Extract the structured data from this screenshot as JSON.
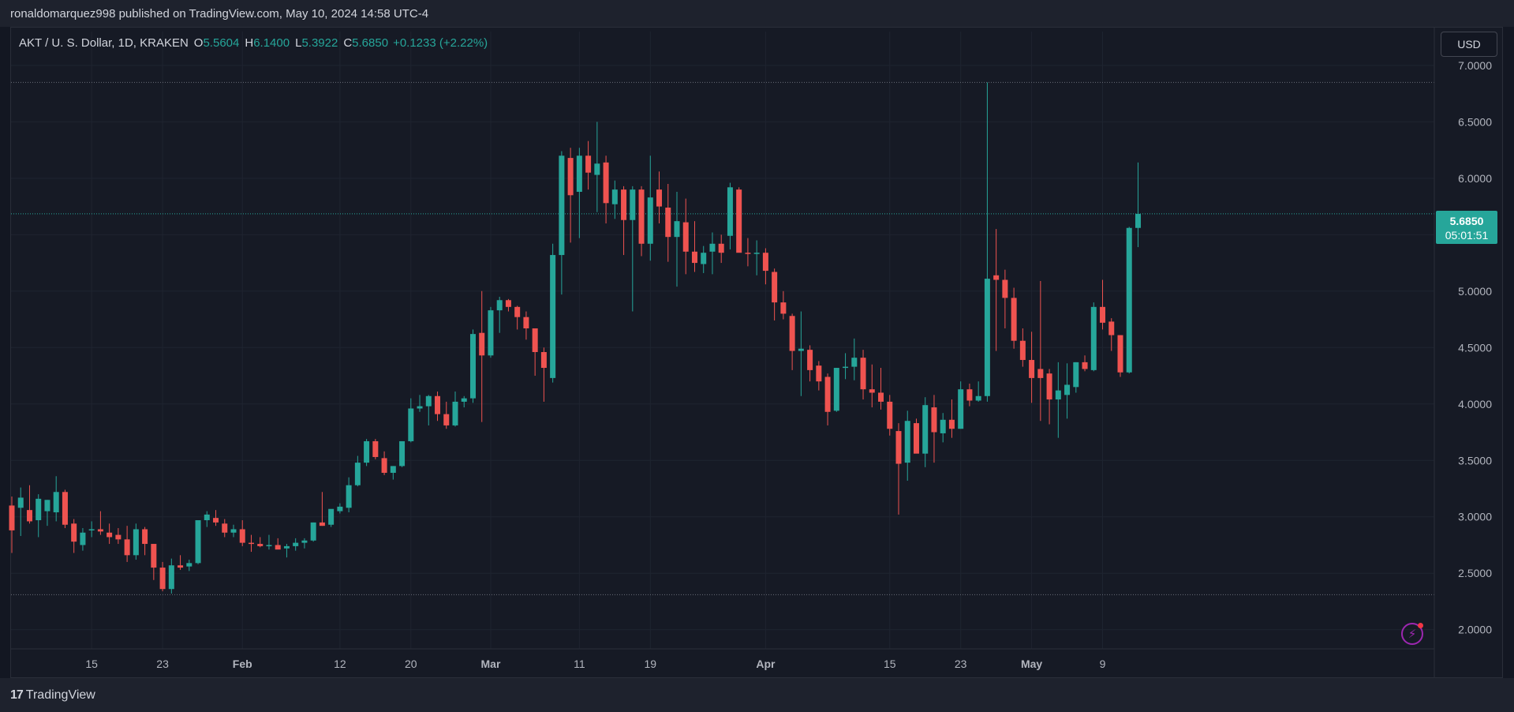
{
  "header": {
    "published_text": "ronaldomarquez998 published on TradingView.com, May 10, 2024 14:58 UTC-4"
  },
  "symbol": {
    "name": "AKT / U. S. Dollar, 1D, KRAKEN",
    "open_label": "O",
    "open": "5.5604",
    "high_label": "H",
    "high": "6.1400",
    "low_label": "L",
    "low": "5.3922",
    "close_label": "C",
    "close": "5.6850",
    "change": "+0.1233 (+2.22%)"
  },
  "currency_button": "USD",
  "last_price": {
    "price": "5.6850",
    "countdown": "05:01:51"
  },
  "footer": {
    "logo_mark": "17",
    "logo_text": "TradingView"
  },
  "colors": {
    "up": "#26a69a",
    "down": "#ef5350",
    "background": "#161a25",
    "grid": "#1f2430",
    "accent": "#9c27b0"
  },
  "icons": {
    "flash": "lightning-icon"
  },
  "chart_data": {
    "type": "candlestick",
    "title": "AKT / U. S. Dollar, 1D, KRAKEN",
    "y_tick_labels": [
      "2.0000",
      "2.5000",
      "3.0000",
      "3.5000",
      "4.0000",
      "4.5000",
      "5.0000",
      "5.5000",
      "6.0000",
      "6.5000",
      "7.0000"
    ],
    "ylim": [
      1.83,
      7.3
    ],
    "x_tick_labels": [
      {
        "label": "15",
        "index": 9
      },
      {
        "label": "23",
        "index": 17
      },
      {
        "label": "Feb",
        "index": 26
      },
      {
        "label": "12",
        "index": 37
      },
      {
        "label": "20",
        "index": 45
      },
      {
        "label": "Mar",
        "index": 54
      },
      {
        "label": "11",
        "index": 64
      },
      {
        "label": "19",
        "index": 72
      },
      {
        "label": "Apr",
        "index": 85
      },
      {
        "label": "15",
        "index": 99
      },
      {
        "label": "23",
        "index": 107
      },
      {
        "label": "May",
        "index": 115
      },
      {
        "label": "9",
        "index": 123
      }
    ],
    "grid": true,
    "horizontal_levels": [
      6.85,
      2.31
    ],
    "last_close": 5.685,
    "ohlc": [
      [
        3.1,
        3.18,
        2.68,
        2.88
      ],
      [
        3.08,
        3.26,
        2.83,
        3.17
      ],
      [
        3.06,
        3.28,
        2.94,
        2.96
      ],
      [
        2.97,
        3.2,
        2.82,
        3.16
      ],
      [
        3.05,
        3.15,
        2.92,
        3.15
      ],
      [
        3.04,
        3.36,
        2.96,
        3.22
      ],
      [
        3.22,
        3.24,
        2.9,
        2.93
      ],
      [
        2.94,
        2.98,
        2.68,
        2.78
      ],
      [
        2.75,
        2.9,
        2.7,
        2.86
      ],
      [
        2.88,
        2.96,
        2.82,
        2.89
      ],
      [
        2.89,
        3.05,
        2.84,
        2.87
      ],
      [
        2.86,
        2.94,
        2.76,
        2.82
      ],
      [
        2.84,
        2.9,
        2.76,
        2.8
      ],
      [
        2.8,
        2.92,
        2.6,
        2.66
      ],
      [
        2.66,
        2.94,
        2.62,
        2.89
      ],
      [
        2.89,
        2.91,
        2.66,
        2.76
      ],
      [
        2.76,
        2.76,
        2.44,
        2.55
      ],
      [
        2.55,
        2.6,
        2.34,
        2.36
      ],
      [
        2.36,
        2.63,
        2.32,
        2.57
      ],
      [
        2.57,
        2.66,
        2.53,
        2.55
      ],
      [
        2.56,
        2.62,
        2.52,
        2.59
      ],
      [
        2.59,
        2.97,
        2.58,
        2.97
      ],
      [
        2.97,
        3.05,
        2.91,
        3.02
      ],
      [
        2.99,
        3.06,
        2.92,
        2.95
      ],
      [
        2.94,
        2.98,
        2.82,
        2.86
      ],
      [
        2.86,
        2.93,
        2.82,
        2.89
      ],
      [
        2.89,
        2.97,
        2.74,
        2.77
      ],
      [
        2.77,
        2.84,
        2.69,
        2.76
      ],
      [
        2.76,
        2.82,
        2.73,
        2.74
      ],
      [
        2.75,
        2.84,
        2.71,
        2.75
      ],
      [
        2.75,
        2.81,
        2.72,
        2.71
      ],
      [
        2.72,
        2.76,
        2.64,
        2.74
      ],
      [
        2.74,
        2.81,
        2.7,
        2.77
      ],
      [
        2.77,
        2.81,
        2.72,
        2.79
      ],
      [
        2.79,
        2.95,
        2.78,
        2.95
      ],
      [
        2.95,
        3.22,
        2.92,
        2.92
      ],
      [
        2.93,
        3.05,
        2.91,
        3.07
      ],
      [
        3.05,
        3.12,
        3.03,
        3.09
      ],
      [
        3.08,
        3.35,
        3.04,
        3.28
      ],
      [
        3.28,
        3.54,
        3.27,
        3.48
      ],
      [
        3.48,
        3.69,
        3.45,
        3.67
      ],
      [
        3.67,
        3.69,
        3.51,
        3.53
      ],
      [
        3.52,
        3.58,
        3.37,
        3.39
      ],
      [
        3.39,
        3.45,
        3.33,
        3.45
      ],
      [
        3.45,
        3.67,
        3.44,
        3.67
      ],
      [
        3.67,
        4.05,
        3.66,
        3.96
      ],
      [
        3.96,
        4.08,
        3.93,
        3.98
      ],
      [
        3.98,
        4.08,
        3.81,
        4.07
      ],
      [
        4.07,
        4.11,
        3.85,
        3.91
      ],
      [
        3.91,
        4.02,
        3.78,
        3.81
      ],
      [
        3.81,
        4.11,
        3.8,
        4.02
      ],
      [
        4.02,
        4.07,
        3.97,
        4.05
      ],
      [
        4.05,
        4.66,
        4.01,
        4.62
      ],
      [
        4.63,
        5.0,
        3.84,
        4.43
      ],
      [
        4.43,
        4.86,
        4.41,
        4.83
      ],
      [
        4.83,
        4.95,
        4.63,
        4.92
      ],
      [
        4.92,
        4.93,
        4.82,
        4.86
      ],
      [
        4.86,
        4.87,
        4.66,
        4.77
      ],
      [
        4.77,
        4.82,
        4.57,
        4.67
      ],
      [
        4.67,
        4.67,
        4.25,
        4.46
      ],
      [
        4.46,
        4.5,
        4.02,
        4.32
      ],
      [
        4.23,
        5.42,
        4.19,
        5.32
      ],
      [
        5.32,
        6.24,
        4.97,
        6.2
      ],
      [
        6.18,
        6.27,
        5.43,
        5.85
      ],
      [
        5.88,
        6.27,
        5.47,
        6.2
      ],
      [
        6.2,
        6.33,
        5.9,
        6.05
      ],
      [
        6.03,
        6.5,
        5.7,
        6.13
      ],
      [
        6.14,
        6.2,
        5.6,
        5.78
      ],
      [
        5.77,
        5.98,
        5.64,
        5.9
      ],
      [
        5.9,
        5.93,
        5.32,
        5.63
      ],
      [
        5.63,
        5.93,
        4.82,
        5.9
      ],
      [
        5.9,
        5.93,
        5.31,
        5.42
      ],
      [
        5.42,
        6.2,
        5.27,
        5.83
      ],
      [
        5.9,
        6.06,
        5.6,
        5.75
      ],
      [
        5.74,
        5.95,
        5.26,
        5.48
      ],
      [
        5.48,
        5.88,
        5.04,
        5.62
      ],
      [
        5.61,
        5.82,
        5.15,
        5.35
      ],
      [
        5.35,
        5.62,
        5.17,
        5.25
      ],
      [
        5.24,
        5.4,
        5.16,
        5.34
      ],
      [
        5.35,
        5.52,
        5.15,
        5.42
      ],
      [
        5.42,
        5.5,
        5.25,
        5.34
      ],
      [
        5.49,
        5.96,
        5.37,
        5.92
      ],
      [
        5.9,
        5.92,
        5.35,
        5.34
      ],
      [
        5.34,
        5.47,
        5.22,
        5.33
      ],
      [
        5.33,
        5.45,
        5.14,
        5.34
      ],
      [
        5.34,
        5.38,
        5.06,
        5.18
      ],
      [
        5.17,
        5.2,
        4.74,
        4.9
      ],
      [
        4.9,
        5.0,
        4.75,
        4.8
      ],
      [
        4.78,
        4.8,
        4.3,
        4.47
      ],
      [
        4.47,
        4.82,
        4.07,
        4.49
      ],
      [
        4.48,
        4.52,
        4.2,
        4.3
      ],
      [
        4.34,
        4.38,
        4.12,
        4.2
      ],
      [
        4.24,
        4.27,
        3.81,
        3.93
      ],
      [
        3.94,
        4.32,
        3.93,
        4.32
      ],
      [
        4.32,
        4.45,
        4.22,
        4.33
      ],
      [
        4.33,
        4.58,
        4.21,
        4.41
      ],
      [
        4.41,
        4.48,
        4.04,
        4.13
      ],
      [
        4.13,
        4.35,
        3.97,
        4.1
      ],
      [
        4.1,
        4.32,
        3.95,
        4.02
      ],
      [
        4.02,
        4.08,
        3.72,
        3.78
      ],
      [
        3.76,
        3.83,
        3.02,
        3.47
      ],
      [
        3.48,
        3.94,
        3.32,
        3.85
      ],
      [
        3.83,
        3.87,
        3.57,
        3.56
      ],
      [
        3.56,
        4.06,
        3.44,
        3.99
      ],
      [
        3.97,
        4.08,
        3.48,
        3.75
      ],
      [
        3.74,
        3.92,
        3.66,
        3.86
      ],
      [
        3.86,
        4.04,
        3.7,
        3.78
      ],
      [
        3.78,
        4.2,
        3.78,
        4.13
      ],
      [
        4.13,
        4.18,
        3.98,
        4.03
      ],
      [
        4.03,
        4.2,
        4.02,
        4.07
      ],
      [
        4.07,
        6.85,
        4.02,
        5.11
      ],
      [
        5.14,
        5.55,
        4.47,
        5.1
      ],
      [
        5.1,
        5.19,
        4.67,
        4.94
      ],
      [
        4.94,
        5.03,
        4.49,
        4.56
      ],
      [
        4.56,
        4.67,
        4.33,
        4.39
      ],
      [
        4.39,
        4.64,
        4.01,
        4.23
      ],
      [
        4.31,
        5.09,
        3.85,
        4.23
      ],
      [
        4.27,
        4.31,
        3.82,
        4.04
      ],
      [
        4.04,
        4.37,
        3.7,
        4.12
      ],
      [
        4.08,
        4.36,
        3.87,
        4.17
      ],
      [
        4.15,
        4.37,
        4.1,
        4.37
      ],
      [
        4.37,
        4.43,
        4.29,
        4.31
      ],
      [
        4.3,
        4.9,
        4.29,
        4.86
      ],
      [
        4.86,
        5.1,
        4.66,
        4.72
      ],
      [
        4.73,
        4.76,
        4.47,
        4.61
      ],
      [
        4.61,
        4.61,
        4.24,
        4.28
      ],
      [
        4.28,
        5.57,
        4.27,
        5.56
      ],
      [
        5.56,
        6.14,
        5.39,
        5.685
      ]
    ]
  }
}
